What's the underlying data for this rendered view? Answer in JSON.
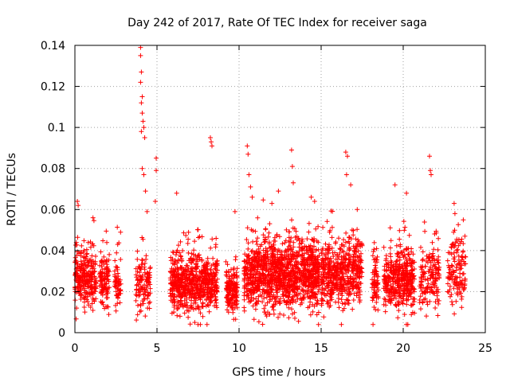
{
  "chart_data": {
    "type": "scatter",
    "title": "Day 242 of 2017, Rate Of TEC Index for receiver saga",
    "xlabel": "GPS time / hours",
    "ylabel": "ROTI / TECUs",
    "xlim": [
      0,
      25
    ],
    "ylim": [
      0,
      0.14
    ],
    "xticks": [
      0,
      5,
      10,
      15,
      20,
      25
    ],
    "xtick_labels": [
      "0",
      "5",
      "10",
      "15",
      "20",
      "25"
    ],
    "yticks": [
      0,
      0.02,
      0.04,
      0.06,
      0.08,
      0.1,
      0.12,
      0.14
    ],
    "ytick_labels": [
      "0",
      "0.02",
      "0.04",
      "0.06",
      "0.08",
      "0.1",
      "0.12",
      "0.14"
    ],
    "grid": true,
    "marker": "plus",
    "color": "#ff0000",
    "clusters": [
      {
        "x_range": [
          0.0,
          1.3
        ],
        "y_center": 0.027,
        "spread": 0.008,
        "count": 260
      },
      {
        "x_range": [
          1.5,
          2.1
        ],
        "y_center": 0.024,
        "spread": 0.006,
        "count": 110
      },
      {
        "x_range": [
          2.4,
          2.8
        ],
        "y_center": 0.023,
        "spread": 0.005,
        "count": 60
      },
      {
        "x_range": [
          3.7,
          4.6
        ],
        "y_center": 0.024,
        "spread": 0.006,
        "count": 120
      },
      {
        "x_range": [
          5.8,
          8.7
        ],
        "y_center": 0.024,
        "spread": 0.007,
        "count": 650
      },
      {
        "x_range": [
          9.2,
          9.9
        ],
        "y_center": 0.021,
        "spread": 0.006,
        "count": 150
      },
      {
        "x_range": [
          10.3,
          14.9
        ],
        "y_center": 0.028,
        "spread": 0.008,
        "count": 1200
      },
      {
        "x_range": [
          15.0,
          17.5
        ],
        "y_center": 0.029,
        "spread": 0.008,
        "count": 520
      },
      {
        "x_range": [
          18.1,
          18.5
        ],
        "y_center": 0.025,
        "spread": 0.007,
        "count": 70
      },
      {
        "x_range": [
          18.8,
          20.7
        ],
        "y_center": 0.026,
        "spread": 0.007,
        "count": 420
      },
      {
        "x_range": [
          21.0,
          22.2
        ],
        "y_center": 0.026,
        "spread": 0.007,
        "count": 160
      },
      {
        "x_range": [
          22.7,
          23.8
        ],
        "y_center": 0.03,
        "spread": 0.008,
        "count": 130
      }
    ],
    "highlights": [
      {
        "x": 4.0,
        "y": 0.139
      },
      {
        "x": 4.0,
        "y": 0.135
      },
      {
        "x": 4.05,
        "y": 0.127
      },
      {
        "x": 4.0,
        "y": 0.122
      },
      {
        "x": 4.1,
        "y": 0.115
      },
      {
        "x": 4.05,
        "y": 0.112
      },
      {
        "x": 4.1,
        "y": 0.107
      },
      {
        "x": 4.15,
        "y": 0.103
      },
      {
        "x": 4.2,
        "y": 0.1
      },
      {
        "x": 4.05,
        "y": 0.098
      },
      {
        "x": 4.25,
        "y": 0.095
      },
      {
        "x": 4.1,
        "y": 0.08
      },
      {
        "x": 4.2,
        "y": 0.077
      },
      {
        "x": 4.3,
        "y": 0.069
      },
      {
        "x": 4.4,
        "y": 0.059
      },
      {
        "x": 4.95,
        "y": 0.085
      },
      {
        "x": 4.95,
        "y": 0.079
      },
      {
        "x": 4.9,
        "y": 0.064
      },
      {
        "x": 6.2,
        "y": 0.068
      },
      {
        "x": 8.25,
        "y": 0.095
      },
      {
        "x": 8.3,
        "y": 0.093
      },
      {
        "x": 8.35,
        "y": 0.091
      },
      {
        "x": 10.5,
        "y": 0.091
      },
      {
        "x": 10.55,
        "y": 0.087
      },
      {
        "x": 10.6,
        "y": 0.077
      },
      {
        "x": 10.7,
        "y": 0.071
      },
      {
        "x": 13.2,
        "y": 0.089
      },
      {
        "x": 13.25,
        "y": 0.081
      },
      {
        "x": 13.3,
        "y": 0.073
      },
      {
        "x": 13.4,
        "y": 0.007
      },
      {
        "x": 16.5,
        "y": 0.088
      },
      {
        "x": 16.6,
        "y": 0.086
      },
      {
        "x": 16.55,
        "y": 0.077
      },
      {
        "x": 16.8,
        "y": 0.072
      },
      {
        "x": 19.5,
        "y": 0.072
      },
      {
        "x": 21.6,
        "y": 0.086
      },
      {
        "x": 21.65,
        "y": 0.079
      },
      {
        "x": 21.7,
        "y": 0.077
      },
      {
        "x": 23.1,
        "y": 0.063
      },
      {
        "x": 23.15,
        "y": 0.058
      },
      {
        "x": 0.15,
        "y": 0.064
      },
      {
        "x": 0.2,
        "y": 0.062
      },
      {
        "x": 1.1,
        "y": 0.056
      },
      {
        "x": 9.75,
        "y": 0.059
      },
      {
        "x": 10.8,
        "y": 0.066
      },
      {
        "x": 12.0,
        "y": 0.063
      },
      {
        "x": 12.4,
        "y": 0.069
      },
      {
        "x": 14.4,
        "y": 0.066
      },
      {
        "x": 14.6,
        "y": 0.064
      },
      {
        "x": 17.2,
        "y": 0.06
      },
      {
        "x": 20.2,
        "y": 0.068
      },
      {
        "x": 7.3,
        "y": 0.005
      },
      {
        "x": 7.5,
        "y": 0.004
      },
      {
        "x": 0.1,
        "y": 0.012
      }
    ]
  }
}
